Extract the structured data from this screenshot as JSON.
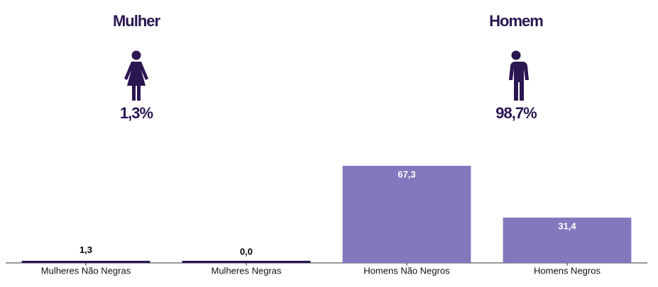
{
  "chart_data": {
    "type": "bar",
    "summary": [
      {
        "label": "Mulher",
        "value": 1.3,
        "value_label": "1,3%"
      },
      {
        "label": "Homem",
        "value": 98.7,
        "value_label": "98,7%"
      }
    ],
    "categories": [
      "Mulheres Não Negras",
      "Mulheres Negras",
      "Homens Não Negros",
      "Homens Negros"
    ],
    "values": [
      1.3,
      0.0,
      67.3,
      31.4
    ],
    "value_labels": [
      "1,3",
      "0,0",
      "67,3",
      "31,4"
    ],
    "colors": [
      "#2a1650",
      "#2a1650",
      "#8377bd",
      "#8377bd"
    ],
    "summary_color": "#2a1650"
  }
}
